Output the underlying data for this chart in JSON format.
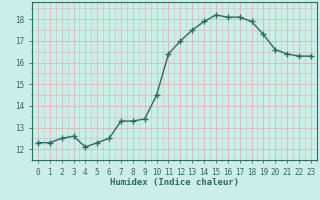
{
  "x": [
    0,
    1,
    2,
    3,
    4,
    5,
    6,
    7,
    8,
    9,
    10,
    11,
    12,
    13,
    14,
    15,
    16,
    17,
    18,
    19,
    20,
    21,
    22,
    23
  ],
  "y": [
    12.3,
    12.3,
    12.5,
    12.6,
    12.1,
    12.3,
    12.5,
    13.3,
    13.3,
    13.4,
    14.5,
    16.4,
    17.0,
    17.5,
    17.9,
    18.2,
    18.1,
    18.1,
    17.9,
    17.3,
    16.6,
    16.4,
    16.3,
    16.3
  ],
  "line_color": "#2e6b5e",
  "marker": "+",
  "marker_size": 4,
  "line_width": 1.0,
  "bg_color": "#cceee8",
  "xlabel": "Humidex (Indice chaleur)",
  "xlim": [
    -0.5,
    23.5
  ],
  "ylim": [
    11.5,
    18.8
  ],
  "yticks": [
    12,
    13,
    14,
    15,
    16,
    17,
    18
  ],
  "xticks": [
    0,
    1,
    2,
    3,
    4,
    5,
    6,
    7,
    8,
    9,
    10,
    11,
    12,
    13,
    14,
    15,
    16,
    17,
    18,
    19,
    20,
    21,
    22,
    23
  ],
  "tick_label_size": 5.5,
  "xlabel_size": 6.5,
  "major_grid_color": "#d8b8b8",
  "minor_grid_color": "#d8b8b8",
  "spine_color": "#2e6b5e",
  "tick_color": "#2e6b5e"
}
